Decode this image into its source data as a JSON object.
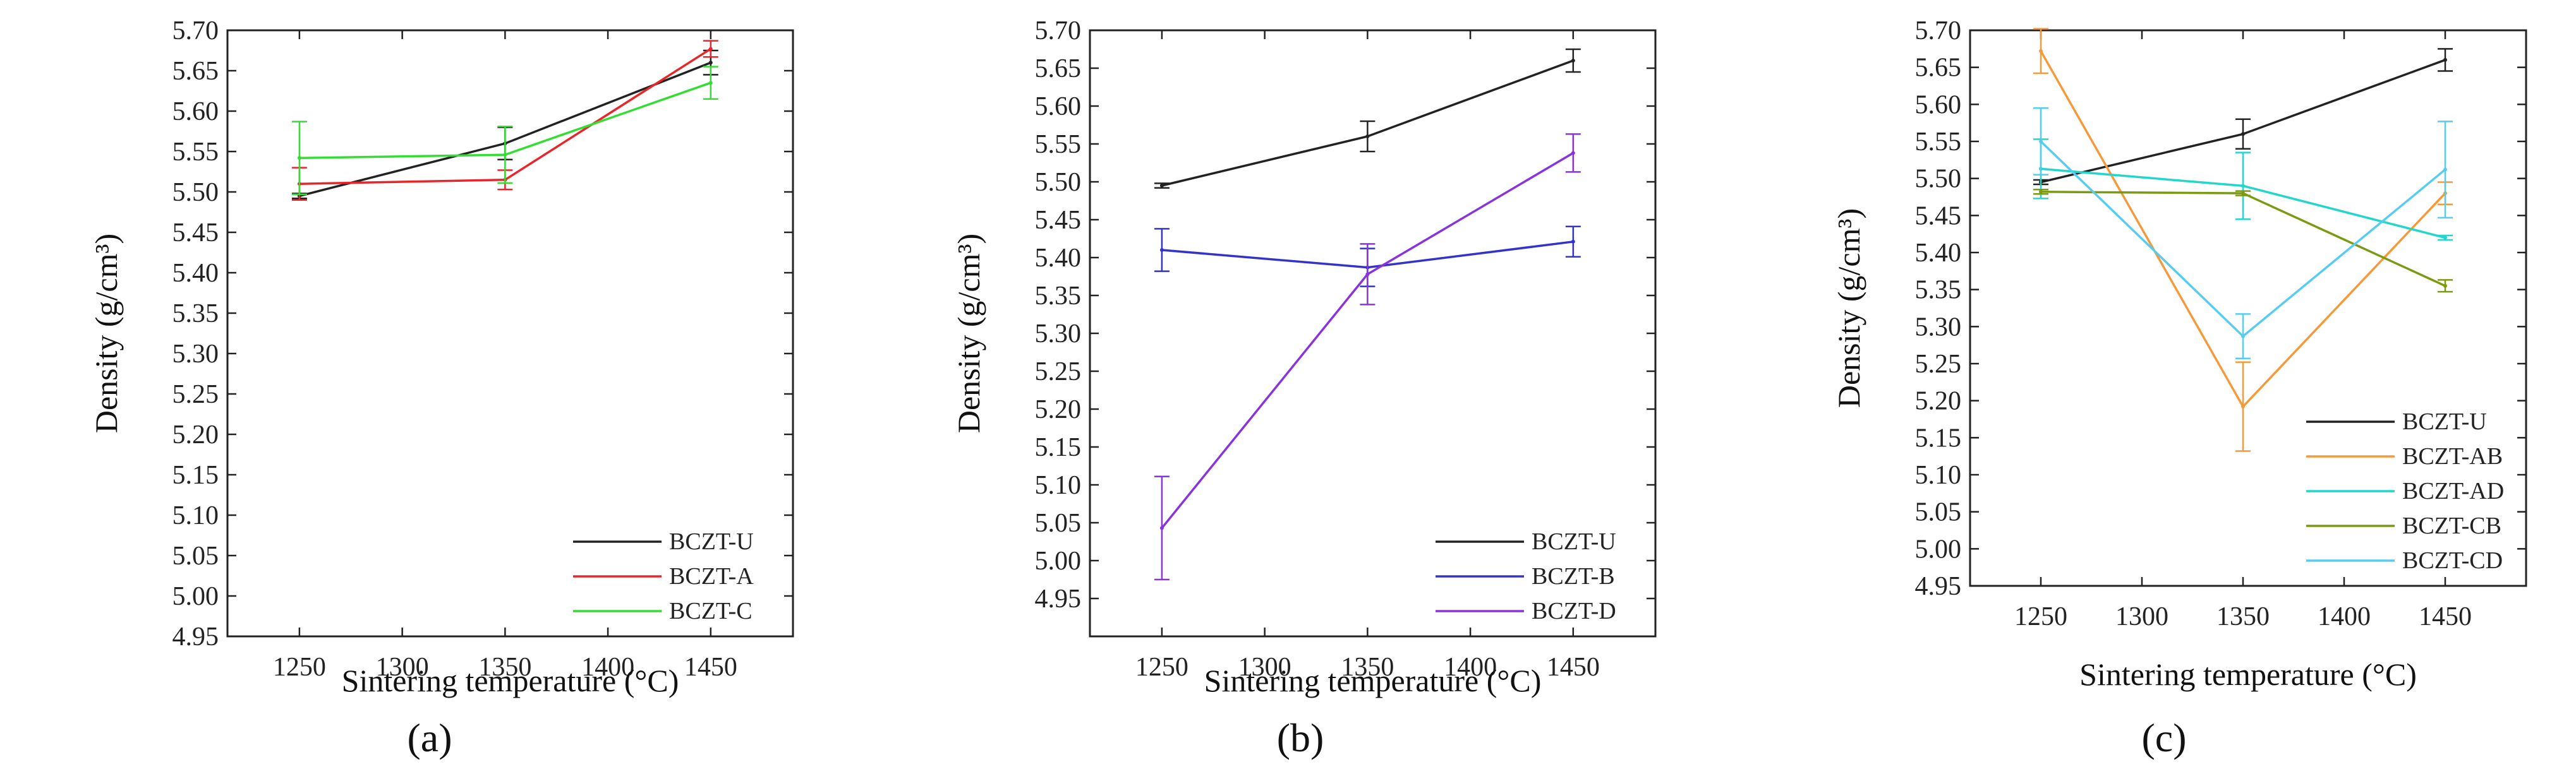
{
  "chart_data": [
    {
      "type": "line",
      "panel_label": "(a)",
      "xlabel": "Sintering temperature (°C)",
      "ylabel": "Density (g/cm³)",
      "x": [
        1250,
        1350,
        1450
      ],
      "xlim": [
        1215,
        1490
      ],
      "ylim": [
        4.95,
        5.7
      ],
      "xticks": [
        1250,
        1300,
        1350,
        1400,
        1450
      ],
      "yticks": [
        4.95,
        5.0,
        5.05,
        5.1,
        5.15,
        5.2,
        5.25,
        5.3,
        5.35,
        5.4,
        5.45,
        5.5,
        5.55,
        5.6,
        5.65,
        5.7
      ],
      "legend_position": "bottom-right",
      "series": [
        {
          "name": "BCZT-U",
          "color": "#222222",
          "values": [
            5.495,
            5.56,
            5.66
          ],
          "errors": [
            0.003,
            0.02,
            0.015
          ]
        },
        {
          "name": "BCZT-A",
          "color": "#e8262a",
          "values": [
            5.51,
            5.515,
            5.677
          ],
          "errors": [
            0.02,
            0.012,
            0.01
          ]
        },
        {
          "name": "BCZT-C",
          "color": "#33dd33",
          "values": [
            5.542,
            5.546,
            5.635
          ],
          "errors": [
            0.045,
            0.035,
            0.02
          ]
        }
      ]
    },
    {
      "type": "line",
      "panel_label": "(b)",
      "xlabel": "Sintering temperature (°C)",
      "ylabel": "Density (g/cm³)",
      "x": [
        1250,
        1350,
        1450
      ],
      "xlim": [
        1215,
        1490
      ],
      "ylim": [
        4.9,
        5.7
      ],
      "xticks": [
        1250,
        1300,
        1350,
        1400,
        1450
      ],
      "yticks": [
        4.95,
        5.0,
        5.05,
        5.1,
        5.15,
        5.2,
        5.25,
        5.3,
        5.35,
        5.4,
        5.45,
        5.5,
        5.55,
        5.6,
        5.65,
        5.7
      ],
      "legend_position": "bottom-right",
      "series": [
        {
          "name": "BCZT-U",
          "color": "#222222",
          "values": [
            5.495,
            5.56,
            5.66
          ],
          "errors": [
            0.003,
            0.02,
            0.015
          ]
        },
        {
          "name": "BCZT-B",
          "color": "#3333cc",
          "values": [
            5.41,
            5.387,
            5.421
          ],
          "errors": [
            0.028,
            0.025,
            0.02
          ]
        },
        {
          "name": "BCZT-D",
          "color": "#8833dd",
          "values": [
            5.043,
            5.378,
            5.538
          ],
          "errors": [
            0.068,
            0.04,
            0.025
          ]
        }
      ]
    },
    {
      "type": "line",
      "panel_label": "(c)",
      "xlabel": "Sintering temperature (°C)",
      "ylabel": "Density (g/cm³)",
      "x": [
        1250,
        1350,
        1450
      ],
      "xlim": [
        1215,
        1490
      ],
      "ylim": [
        4.95,
        5.7
      ],
      "xticks": [
        1250,
        1300,
        1350,
        1400,
        1450
      ],
      "yticks": [
        4.95,
        5.0,
        5.05,
        5.1,
        5.15,
        5.2,
        5.25,
        5.3,
        5.35,
        5.4,
        5.45,
        5.5,
        5.55,
        5.6,
        5.65,
        5.7
      ],
      "legend_position": "bottom-right",
      "series": [
        {
          "name": "BCZT-U",
          "color": "#222222",
          "values": [
            5.495,
            5.56,
            5.66
          ],
          "errors": [
            0.003,
            0.02,
            0.015
          ]
        },
        {
          "name": "BCZT-AB",
          "color": "#f59a3a",
          "values": [
            5.672,
            5.192,
            5.48
          ],
          "errors": [
            0.03,
            0.06,
            0.015
          ]
        },
        {
          "name": "BCZT-AD",
          "color": "#22d6cc",
          "values": [
            5.513,
            5.49,
            5.42
          ],
          "errors": [
            0.04,
            0.045,
            0.003
          ]
        },
        {
          "name": "BCZT-CB",
          "color": "#7a9a10",
          "values": [
            5.482,
            5.48,
            5.355
          ],
          "errors": [
            0.003,
            0.003,
            0.008
          ]
        },
        {
          "name": "BCZT-CD",
          "color": "#55ccf0",
          "values": [
            5.55,
            5.287,
            5.512
          ],
          "errors": [
            0.045,
            0.03,
            0.065
          ]
        }
      ]
    }
  ]
}
